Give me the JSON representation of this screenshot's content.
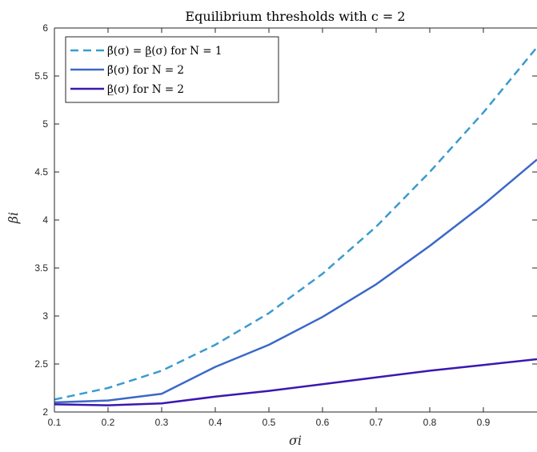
{
  "chart_data": {
    "type": "line",
    "title": "Equilibrium thresholds with c = 2",
    "xlabel": "σi",
    "ylabel": "βi",
    "xlim": [
      0.1,
      1.0
    ],
    "ylim": [
      2,
      6
    ],
    "x_ticks": [
      "0.1",
      "0.2",
      "0.3",
      "0.4",
      "0.5",
      "0.6",
      "0.7",
      "0.8",
      "0.9"
    ],
    "y_ticks": [
      "2",
      "2.5",
      "3",
      "3.5",
      "4",
      "4.5",
      "5",
      "5.5",
      "6"
    ],
    "grid": false,
    "legend_position": "top-left",
    "x": [
      0.1,
      0.2,
      0.3,
      0.4,
      0.5,
      0.6,
      0.7,
      0.8,
      0.9,
      1.0
    ],
    "series": [
      {
        "name": "β̄(σ) = β̲(σ) for N = 1",
        "color": "#3a9bd0",
        "dashed": true,
        "values": [
          2.13,
          2.25,
          2.43,
          2.7,
          3.03,
          3.44,
          3.93,
          4.5,
          5.12,
          5.8
        ]
      },
      {
        "name": "β̄(σ) for N = 2",
        "color": "#3b68c8",
        "dashed": false,
        "values": [
          2.1,
          2.12,
          2.19,
          2.47,
          2.7,
          2.99,
          3.33,
          3.73,
          4.16,
          4.63
        ]
      },
      {
        "name": "β̲(σ) for N = 2",
        "color": "#3a18b0",
        "dashed": false,
        "values": [
          2.08,
          2.07,
          2.09,
          2.16,
          2.22,
          2.29,
          2.36,
          2.43,
          2.49,
          2.55
        ]
      }
    ]
  }
}
